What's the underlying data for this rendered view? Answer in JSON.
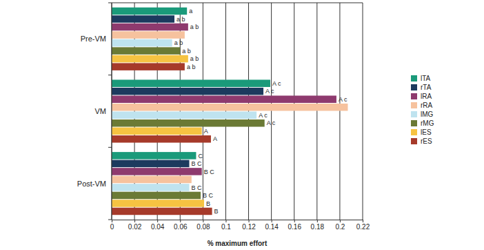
{
  "chart_data": {
    "type": "bar",
    "orientation": "horizontal",
    "x_label": "% maximum effort",
    "categories": [
      "Pre-VM",
      "VM",
      "Post-VM"
    ],
    "xlim": [
      0,
      0.22
    ],
    "xticks": [
      0,
      0.02,
      0.04,
      0.06,
      0.08,
      0.1,
      0.12,
      0.14,
      0.16,
      0.18,
      0.2,
      0.22
    ],
    "grid": true,
    "legend": "right",
    "series": [
      {
        "name": "lTA",
        "color": "#1a9a7a",
        "values": [
          0.066,
          0.139,
          0.074
        ],
        "annotations": [
          "a",
          "A c",
          "C"
        ]
      },
      {
        "name": "rTA",
        "color": "#1c3a5e",
        "values": [
          0.055,
          0.133,
          0.068
        ],
        "annotations": [
          "a b",
          "A c",
          "B C"
        ]
      },
      {
        "name": "lRA",
        "color": "#8e3a6e",
        "values": [
          0.067,
          0.197,
          0.079
        ],
        "annotations": [
          "a b",
          "A c",
          "B C"
        ]
      },
      {
        "name": "rRA",
        "color": "#f6c29e",
        "values": [
          0.064,
          0.207,
          0.07
        ],
        "annotations": [
          null,
          null,
          null
        ]
      },
      {
        "name": "lMG",
        "color": "#bfe3ef",
        "values": [
          0.053,
          0.127,
          0.068
        ],
        "annotations": [
          "a b",
          "A c",
          "B C"
        ]
      },
      {
        "name": "rMG",
        "color": "#6b7a35",
        "values": [
          0.06,
          0.134,
          0.078
        ],
        "annotations": [
          "a b",
          "A c",
          "B C"
        ]
      },
      {
        "name": "lES",
        "color": "#f6c342",
        "values": [
          0.067,
          0.079,
          0.081
        ],
        "annotations": [
          "a b",
          "A",
          "B"
        ]
      },
      {
        "name": "rES",
        "color": "#a63a2a",
        "values": [
          0.064,
          0.087,
          0.088
        ],
        "annotations": [
          "a b",
          "A",
          "B"
        ]
      }
    ]
  }
}
